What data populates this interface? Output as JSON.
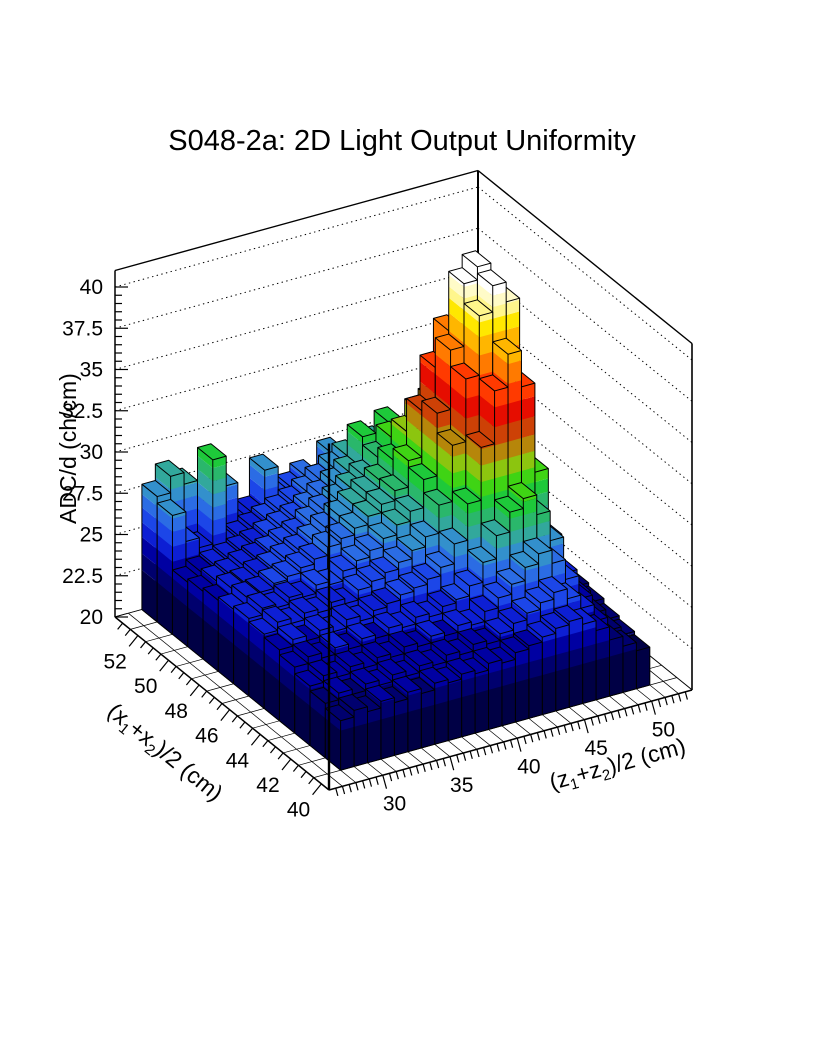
{
  "title": "S048-2a: 2D Light Output Uniformity",
  "axes": {
    "x": {
      "title": "(x_1+x_2)/2 (cm)",
      "min": 39.5,
      "max": 53.5,
      "major_ticks": [
        52,
        50,
        48,
        46,
        44,
        42,
        40
      ],
      "minor_step": 0.5,
      "grid_step": 1
    },
    "z": {
      "title": "(z_1+z_2)/2 (cm)",
      "min": 26,
      "max": 53,
      "major_ticks": [
        30,
        35,
        40,
        45,
        50
      ],
      "minor_step": 0.5,
      "grid_step": 1
    },
    "value": {
      "title": "ADC/d (ch/cm)",
      "min": 20,
      "max": 41,
      "major_ticks": [
        20,
        22.5,
        25,
        27.5,
        30,
        32.5,
        35,
        37.5,
        40
      ],
      "minor_step": 0.5,
      "wall_lines": [
        22.5,
        25,
        27.5,
        30,
        32.5,
        35,
        37.5,
        40
      ]
    }
  },
  "palette": {
    "stops": [
      [
        22.4,
        "#000045"
      ],
      [
        23.4,
        "#00006E"
      ],
      [
        24.4,
        "#0000A2"
      ],
      [
        25.3,
        "#0D1FD4"
      ],
      [
        26.2,
        "#1C46E8"
      ],
      [
        27.0,
        "#2B6CE4"
      ],
      [
        27.8,
        "#3390CC"
      ],
      [
        28.6,
        "#32A89C"
      ],
      [
        29.4,
        "#2AB76B"
      ],
      [
        30.2,
        "#1EC93A"
      ],
      [
        31.1,
        "#3FD414"
      ],
      [
        32.1,
        "#8CC50F"
      ],
      [
        33.1,
        "#B6860A"
      ],
      [
        34.2,
        "#CD4106"
      ],
      [
        35.4,
        "#E60D00"
      ],
      [
        36.6,
        "#FF3A00"
      ],
      [
        37.8,
        "#FF7A00"
      ],
      [
        38.9,
        "#FFB600"
      ],
      [
        39.8,
        "#FFE800"
      ],
      [
        40.5,
        "#FFF68C"
      ],
      [
        41.2,
        "#FFFBC8"
      ],
      [
        42.5,
        "#FFFFFF"
      ]
    ]
  },
  "chart_data": {
    "type": "bar",
    "subtype": "lego-3d-histogram",
    "title": "S048-2a: 2D Light Output Uniformity",
    "xlabel": "(x1+x2)/2 (cm)",
    "ylabel": "(z1+z2)/2 (cm)",
    "zlabel": "ADC/d (ch/cm)",
    "x_range": [
      39.5,
      53.5
    ],
    "z_range": [
      26,
      53
    ],
    "value_range": [
      20,
      41
    ],
    "x_bin_centers": [
      41,
      42,
      43,
      44,
      45,
      46,
      47,
      48,
      49,
      50,
      51,
      52,
      53
    ],
    "z_bin_centers": [
      28.5,
      29.5,
      30.5,
      31.5,
      32.5,
      33.5,
      34.5,
      35.5,
      36.5,
      37.5,
      38.5,
      39.5,
      40.5,
      41.5,
      42.5,
      43.5,
      44.5,
      45.5,
      46.5,
      47.5,
      48.5,
      49.5,
      50.5
    ],
    "values_note": "ADC/d values estimated from rendered bar heights; bin (x,z) -> values[x_index][z_index]",
    "values": [
      [
        23.0,
        23.4,
        23.1,
        23.5,
        23.2,
        23.6,
        23.3,
        23.7,
        23.5,
        23.8,
        23.6,
        24.0,
        23.8,
        24.2,
        24.4,
        24.7,
        25.0,
        25.2,
        24.8,
        24.2,
        23.4,
        22.8,
        22.3
      ],
      [
        23.3,
        23.7,
        23.4,
        23.8,
        23.5,
        23.9,
        23.6,
        24.0,
        23.8,
        24.2,
        24.0,
        24.4,
        24.2,
        24.6,
        25.0,
        25.4,
        25.8,
        26.2,
        25.6,
        24.8,
        23.8,
        23.0,
        22.5
      ],
      [
        23.6,
        24.0,
        23.7,
        24.1,
        23.8,
        24.2,
        24.0,
        24.4,
        24.2,
        24.6,
        24.4,
        24.8,
        24.6,
        25.2,
        25.8,
        26.4,
        27.2,
        27.8,
        27.0,
        25.8,
        24.4,
        23.3,
        22.7
      ],
      [
        24.0,
        24.4,
        24.1,
        24.5,
        24.2,
        24.6,
        24.4,
        24.8,
        24.6,
        25.0,
        24.8,
        25.2,
        25.4,
        26.0,
        27.2,
        28.6,
        29.8,
        30.4,
        29.2,
        27.4,
        25.2,
        23.7,
        23.0
      ],
      [
        24.3,
        24.7,
        24.4,
        24.8,
        24.5,
        25.0,
        24.7,
        25.1,
        25.3,
        25.6,
        25.8,
        26.1,
        26.6,
        27.8,
        30.0,
        33.2,
        36.4,
        38.4,
        36.2,
        30.8,
        26.6,
        24.3,
        23.2
      ],
      [
        24.5,
        25.0,
        24.7,
        25.1,
        24.9,
        25.3,
        25.0,
        25.6,
        25.9,
        26.2,
        26.6,
        27.1,
        27.7,
        29.4,
        32.8,
        36.6,
        40.2,
        41.8,
        40.6,
        33.8,
        27.8,
        24.7,
        23.4
      ],
      [
        24.7,
        25.1,
        24.9,
        25.3,
        25.1,
        25.6,
        25.4,
        26.0,
        26.4,
        26.8,
        27.3,
        27.9,
        28.5,
        30.2,
        34.0,
        37.6,
        41.4,
        42.2,
        39.2,
        32.6,
        27.2,
        24.5,
        23.3
      ],
      [
        24.5,
        25.0,
        25.1,
        25.4,
        25.6,
        25.9,
        26.2,
        26.7,
        27.0,
        27.4,
        27.9,
        28.4,
        29.0,
        30.6,
        33.4,
        35.8,
        37.8,
        36.8,
        33.8,
        29.6,
        26.2,
        24.2,
        23.1
      ],
      [
        24.3,
        24.8,
        24.9,
        25.2,
        25.4,
        25.7,
        26.0,
        26.4,
        26.9,
        27.4,
        27.9,
        28.4,
        28.9,
        29.9,
        31.4,
        32.4,
        32.8,
        31.0,
        28.8,
        27.2,
        25.2,
        23.8,
        22.9
      ],
      [
        24.1,
        24.5,
        24.7,
        25.0,
        25.2,
        25.4,
        25.7,
        26.0,
        26.5,
        27.0,
        27.4,
        27.9,
        28.4,
        29.3,
        30.3,
        29.8,
        28.9,
        27.9,
        26.9,
        25.8,
        24.7,
        23.5,
        22.7
      ],
      [
        23.9,
        24.3,
        24.5,
        24.7,
        24.9,
        25.1,
        25.4,
        25.7,
        26.0,
        26.4,
        26.9,
        27.4,
        27.9,
        29.8,
        28.3,
        30.2,
        27.7,
        26.8,
        25.9,
        25.0,
        24.2,
        23.2,
        22.5
      ],
      [
        27.2,
        25.4,
        24.8,
        29.9,
        24.6,
        24.8,
        25.1,
        25.4,
        25.7,
        26.0,
        26.4,
        26.9,
        27.4,
        27.9,
        26.9,
        28.3,
        26.4,
        25.8,
        25.2,
        24.5,
        23.8,
        22.9,
        22.2
      ],
      [
        27.6,
        28.6,
        27.9,
        26.6,
        24.3,
        27.1,
        24.6,
        25.1,
        27.4,
        25.6,
        25.9,
        26.4,
        25.9,
        27.3,
        26.4,
        25.9,
        25.4,
        25.0,
        24.5,
        23.9,
        23.2,
        22.6,
        22.0
      ]
    ]
  }
}
